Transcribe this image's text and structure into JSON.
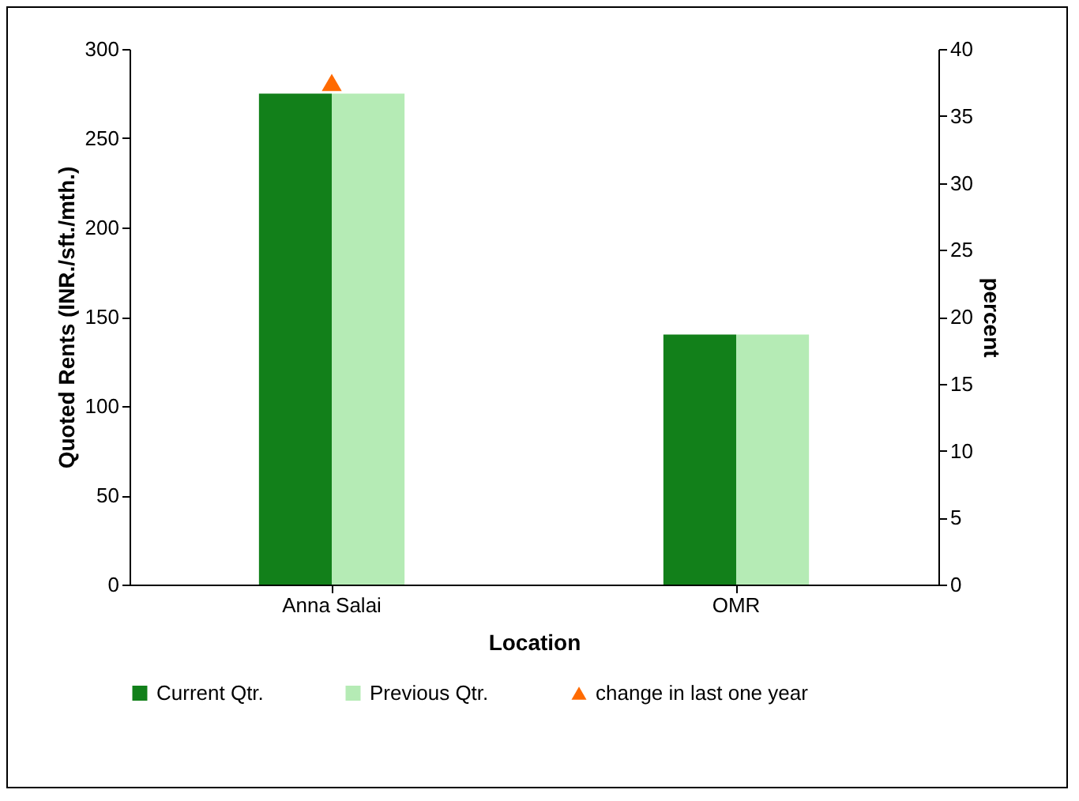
{
  "chart_data": {
    "type": "bar",
    "xlabel": "Location",
    "ylabel": "Quoted Rents (INR./sft./mth.)",
    "y2label": "percent",
    "categories": [
      "Anna Salai",
      "OMR"
    ],
    "series": [
      {
        "name": "Current Qtr.",
        "color": "#12801a",
        "values": [
          275,
          140
        ]
      },
      {
        "name": "Previous Qtr.",
        "color": "#b5ebb5",
        "values": [
          275,
          140
        ]
      },
      {
        "name": "change in last one year",
        "type": "scatter",
        "axis": "y2",
        "color": "#ff6a00",
        "values": [
          37.5,
          null
        ]
      }
    ],
    "marker": "triangle",
    "ylim": [
      0,
      300
    ],
    "yticks": [
      0,
      50,
      100,
      150,
      200,
      250,
      300
    ],
    "y2lim": [
      0,
      40
    ],
    "y2ticks": [
      0,
      5,
      10,
      15,
      20,
      25,
      30,
      35,
      40
    ],
    "grid": false,
    "legend": "bottom"
  }
}
